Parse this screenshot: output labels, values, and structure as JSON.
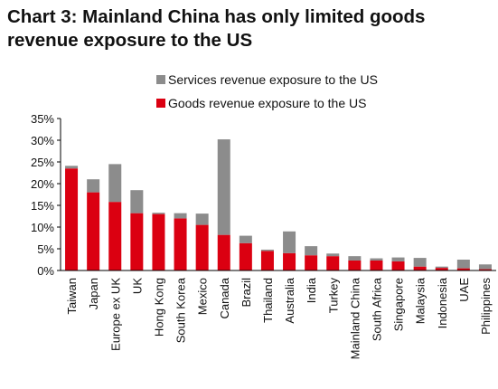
{
  "title_line1": "Chart 3: Mainland China has only limited goods",
  "title_line2": "revenue exposure to the US",
  "colors": {
    "goods": "#db0011",
    "services": "#8c8c8c",
    "axis": "#000000"
  },
  "chart_data": {
    "type": "bar",
    "stacked": true,
    "categories": [
      "Taiwan",
      "Japan",
      "Europe ex UK",
      "UK",
      "Hong Kong",
      "South Korea",
      "Mexico",
      "Canada",
      "Brazil",
      "Thailand",
      "Australia",
      "India",
      "Turkey",
      "Mainland China",
      "South Africa",
      "Singapore",
      "Malaysia",
      "Indonesia",
      "UAE",
      "Philippines"
    ],
    "series": [
      {
        "name": "Goods revenue exposure to the US",
        "values": [
          23.5,
          18.0,
          15.8,
          13.2,
          13.0,
          12.0,
          10.5,
          8.2,
          6.3,
          4.5,
          4.0,
          3.5,
          3.3,
          2.3,
          2.3,
          2.1,
          0.9,
          0.6,
          0.5,
          0.3
        ]
      },
      {
        "name": "Services revenue exposure to the US",
        "values": [
          0.6,
          3.0,
          8.7,
          5.3,
          0.3,
          1.2,
          2.6,
          22.0,
          1.7,
          0.3,
          5.0,
          2.1,
          0.6,
          1.0,
          0.5,
          0.9,
          2.0,
          0.3,
          2.0,
          1.1
        ]
      }
    ],
    "legend": [
      "Services revenue exposure to the US",
      "Goods revenue exposure to the US"
    ],
    "ylim": [
      0,
      35
    ],
    "yticks": [
      "0%",
      "5%",
      "10%",
      "15%",
      "20%",
      "25%",
      "30%",
      "35%"
    ],
    "ytick_values": [
      0,
      5,
      10,
      15,
      20,
      25,
      30,
      35
    ],
    "legend_position": "top-right"
  }
}
